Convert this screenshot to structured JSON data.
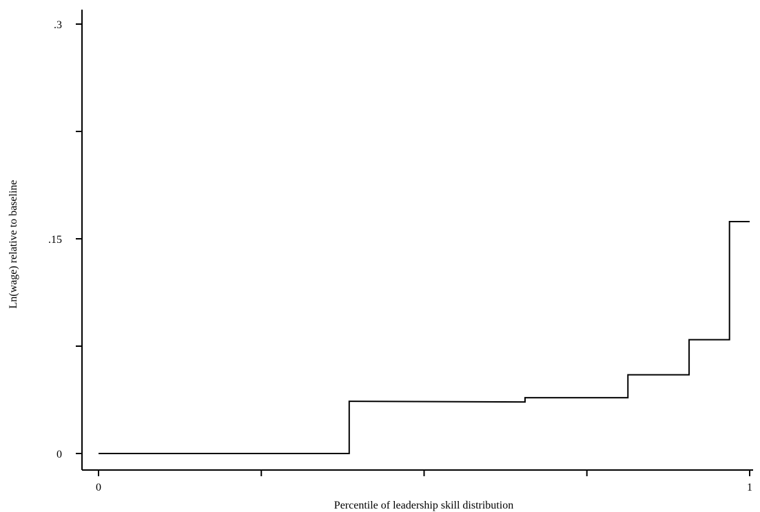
{
  "chart_data": {
    "type": "line",
    "step": true,
    "title": "",
    "xlabel": "Percentile of leadership skill distribution",
    "ylabel": "Ln(wage) relative to baseline",
    "xlim": [
      0,
      1
    ],
    "ylim": [
      0,
      0.3
    ],
    "x_ticks": [
      0,
      0.25,
      0.5,
      0.75,
      1
    ],
    "x_tick_labels": [
      "0",
      "",
      "",
      "",
      "1"
    ],
    "y_ticks": [
      0,
      0.075,
      0.15,
      0.225,
      0.3
    ],
    "y_tick_labels": [
      "0",
      "",
      ".15",
      "",
      ".3"
    ],
    "grid": false,
    "series": [
      {
        "x": [
          0,
          0.385,
          0.385,
          0.655,
          0.655,
          0.813,
          0.813,
          0.907,
          0.907,
          0.969,
          0.969,
          1.0
        ],
        "y": [
          0,
          0,
          0.0365,
          0.036,
          0.039,
          0.039,
          0.055,
          0.055,
          0.0795,
          0.0795,
          0.162,
          0.162
        ]
      }
    ]
  }
}
